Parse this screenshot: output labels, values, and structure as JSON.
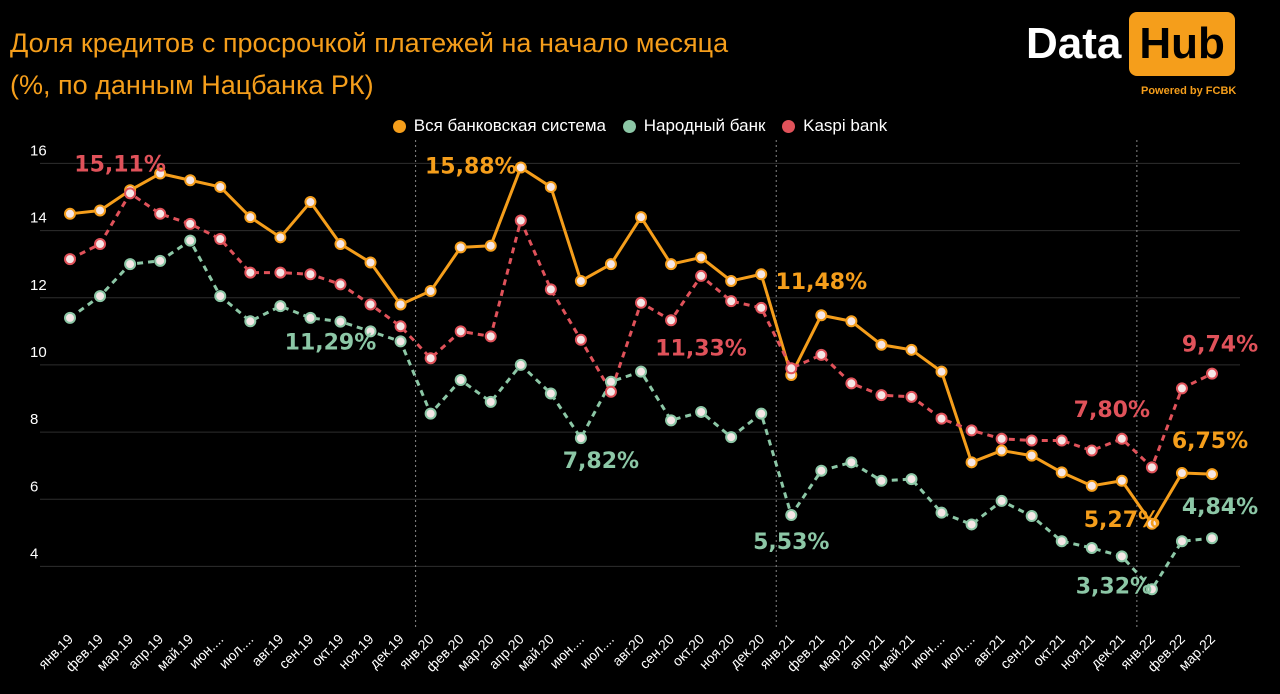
{
  "header": {
    "title_line1": "Доля кредитов с просрочкой платежей на начало месяца",
    "title_line2": "(%, по данным Нацбанка РК)",
    "logo_part1": "Data",
    "logo_part2": "Hub",
    "powered_by": "Powered by FCBK"
  },
  "colors": {
    "background": "#000000",
    "system": "#F59E1B",
    "narodny": "#8CC7A6",
    "kaspi": "#E0525A",
    "grid": "#333333"
  },
  "chart_data": {
    "type": "line",
    "title": "Доля кредитов с просрочкой платежей на начало месяца",
    "subtitle": "(%, по данным Нацбанка РК)",
    "legend_position": "top-center",
    "grid": true,
    "ylim": [
      3,
      16.4
    ],
    "yticks": [
      4,
      6,
      8,
      10,
      12,
      14,
      16
    ],
    "categories": [
      "янв.19",
      "фев.19",
      "мар.19",
      "апр.19",
      "май.19",
      "июн....",
      "июл....",
      "авг.19",
      "сен.19",
      "окт.19",
      "ноя.19",
      "дек.19",
      "янв.20",
      "фев.20",
      "мар.20",
      "апр.20",
      "май.20",
      "июн....",
      "июл....",
      "авг.20",
      "сен.20",
      "окт.20",
      "ноя.20",
      "дек.20",
      "янв.21",
      "фев.21",
      "мар.21",
      "апр.21",
      "май.21",
      "июн....",
      "июл....",
      "авг.21",
      "сен.21",
      "окт.21",
      "ноя.21",
      "дек.21",
      "янв.22",
      "фев.22",
      "мар.22"
    ],
    "series": [
      {
        "name": "Вся банковская система",
        "style": "solid",
        "color": "#F59E1B",
        "values": [
          14.5,
          14.6,
          15.2,
          15.7,
          15.5,
          15.3,
          14.4,
          13.8,
          14.85,
          13.6,
          13.05,
          11.8,
          12.2,
          13.5,
          13.55,
          15.88,
          15.3,
          12.5,
          13.0,
          14.4,
          13.0,
          13.2,
          12.5,
          12.7,
          9.7,
          11.48,
          11.3,
          10.6,
          10.45,
          9.8,
          7.1,
          7.45,
          7.3,
          6.8,
          6.4,
          6.55,
          5.27,
          6.78,
          6.75
        ]
      },
      {
        "name": "Народный банк",
        "style": "dashed",
        "color": "#8CC7A6",
        "values": [
          11.4,
          12.05,
          13.0,
          13.1,
          13.7,
          12.05,
          11.3,
          11.75,
          11.4,
          11.29,
          11.0,
          10.7,
          8.55,
          9.55,
          8.9,
          10.0,
          9.15,
          7.82,
          9.5,
          9.8,
          8.35,
          8.6,
          7.85,
          8.55,
          5.53,
          6.85,
          7.1,
          6.55,
          6.6,
          5.6,
          5.25,
          5.95,
          5.5,
          4.75,
          4.55,
          4.3,
          3.32,
          4.75,
          4.84
        ]
      },
      {
        "name": "Kaspi bank",
        "style": "dashed",
        "color": "#E0525A",
        "values": [
          13.15,
          13.6,
          15.11,
          14.5,
          14.2,
          13.75,
          12.75,
          12.75,
          12.7,
          12.4,
          11.8,
          11.15,
          10.2,
          11.0,
          10.85,
          14.3,
          12.25,
          10.75,
          9.2,
          11.85,
          11.33,
          12.65,
          11.9,
          11.7,
          9.9,
          10.3,
          9.45,
          9.1,
          9.05,
          8.4,
          8.05,
          7.8,
          7.75,
          7.75,
          7.45,
          7.8,
          6.95,
          9.3,
          9.74
        ]
      }
    ],
    "annotations": [
      {
        "text": "15,11%",
        "series": 2,
        "index": 2
      },
      {
        "text": "11,29%",
        "series": 1,
        "index": 9
      },
      {
        "text": "15,88%",
        "series": 0,
        "index": 15
      },
      {
        "text": "7,82%",
        "series": 1,
        "index": 17
      },
      {
        "text": "11,33%",
        "series": 2,
        "index": 20
      },
      {
        "text": "11,48%",
        "series": 0,
        "index": 25
      },
      {
        "text": "5,53%",
        "series": 1,
        "index": 24
      },
      {
        "text": "7,80%",
        "series": 2,
        "index": 35
      },
      {
        "text": "5,27%",
        "series": 0,
        "index": 36
      },
      {
        "text": "3,32%",
        "series": 1,
        "index": 36
      },
      {
        "text": "9,74%",
        "series": 2,
        "index": 38
      },
      {
        "text": "6,75%",
        "series": 0,
        "index": 38
      },
      {
        "text": "4,84%",
        "series": 1,
        "index": 38
      }
    ],
    "vertical_separators_at": [
      11.5,
      23.5,
      35.5
    ]
  }
}
